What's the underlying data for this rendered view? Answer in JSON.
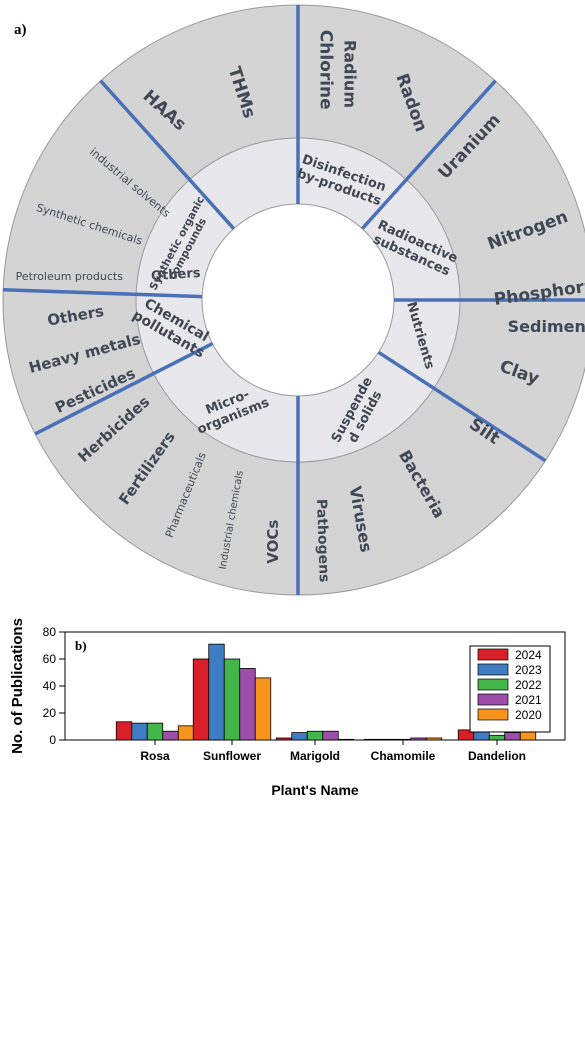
{
  "panel_a": {
    "label": "a)",
    "categories": [
      {
        "name": "Disinfection by-products",
        "lines": [
          "Disinfection",
          "by-products"
        ],
        "items": [
          "HAAs",
          "THMs",
          "Chlorine"
        ]
      },
      {
        "name": "Radioactive substances",
        "lines": [
          "Radioactive",
          "substances"
        ],
        "items": [
          "Radium",
          "Radon",
          "Uranium"
        ]
      },
      {
        "name": "Nutrients",
        "lines": [
          "Nutrients"
        ],
        "items": [
          "Nitrogen",
          "Phosphorus"
        ]
      },
      {
        "name": "Suspended solids",
        "lines": [
          "Suspende",
          "d solids"
        ],
        "items": [
          "Sediment",
          "Clay",
          "Silt"
        ]
      },
      {
        "name": "Micro-organisms",
        "lines": [
          "Micro-",
          "organisms"
        ],
        "items": [
          "Bacteria",
          "Viruses",
          "Pathogens"
        ]
      },
      {
        "name": "Chemical pollutants",
        "lines": [
          "Chemical",
          "pollutants"
        ],
        "items": [
          "VOCs",
          "Industrial chemicals",
          "Pharmaceuticals",
          "Fertilizers",
          "Herbicides",
          "Pesticides",
          "Heavy metals"
        ]
      },
      {
        "name": "Others",
        "lines": [
          "Others"
        ],
        "items": [
          "Others"
        ]
      },
      {
        "name": "Synthetic organic compounds",
        "lines": [
          "Synthetic organic",
          "compounds"
        ],
        "items": [
          "Petroleum products",
          "Synthetic chemicals",
          "industrial solvents"
        ]
      }
    ],
    "colors": {
      "outer_ring": "#d4d4d4",
      "inner_ring": "#e8e8ec",
      "divider": "#4a70b8",
      "text": "#3f4652"
    }
  },
  "chart_data": {
    "type": "bar",
    "label": "b)",
    "categories": [
      "Rosa",
      "Sunflower",
      "Marigold",
      "Chamomile",
      "Dandelion"
    ],
    "series": [
      {
        "name": "2024",
        "color": "#d9202a",
        "values": [
          13.5,
          60,
          1.5,
          0.5,
          7.5
        ]
      },
      {
        "name": "2023",
        "color": "#3e7dc3",
        "values": [
          12.5,
          71,
          5.5,
          0.5,
          8.5
        ]
      },
      {
        "name": "2022",
        "color": "#43b649",
        "values": [
          12.5,
          60,
          6.5,
          0.5,
          3.5
        ]
      },
      {
        "name": "2021",
        "color": "#9c4ea8",
        "values": [
          6.5,
          53,
          6.5,
          1.5,
          5.5
        ]
      },
      {
        "name": "2020",
        "color": "#f7941d",
        "values": [
          10.5,
          46,
          0.5,
          1.5,
          10.5
        ]
      }
    ],
    "xlabel": "Plant's Name",
    "ylabel": "No. of Publications",
    "ylim": [
      0,
      80
    ],
    "yticks": [
      0,
      20,
      40,
      60,
      80
    ],
    "grid": false,
    "legend_position": "top-right"
  }
}
